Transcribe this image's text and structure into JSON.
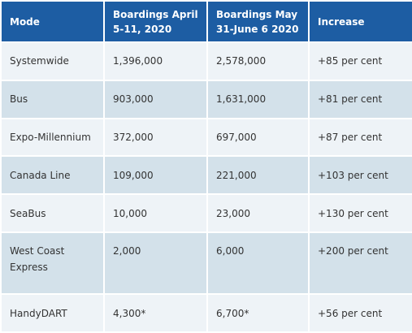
{
  "table": {
    "header": [
      "Mode",
      "Boardings April 5-11, 2020",
      "Boardings May 31-June 6 2020",
      "Increase"
    ],
    "rows": [
      [
        "Systemwide",
        "1,396,000",
        "2,578,000",
        "+85 per cent"
      ],
      [
        "Bus",
        "903,000",
        "1,631,000",
        "+81 per cent"
      ],
      [
        "Expo-Millennium",
        "372,000",
        "697,000",
        "+87 per cent"
      ],
      [
        "Canada Line",
        "109,000",
        "221,000",
        "+103 per cent"
      ],
      [
        "SeaBus",
        "10,000",
        "23,000",
        "+130 per cent"
      ],
      [
        "West Coast Express",
        "2,000",
        "6,000",
        "+200 per cent"
      ],
      [
        "HandyDART",
        "4,300*",
        "6,700*",
        "+56 per cent"
      ]
    ]
  }
}
